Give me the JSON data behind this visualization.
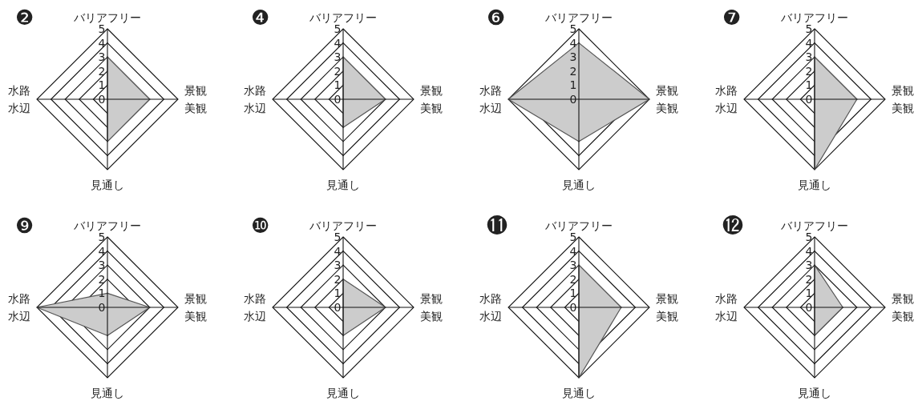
{
  "chart_data": [
    {
      "type": "radar",
      "title": "❷",
      "categories": [
        "バリアフリー",
        "景観美観",
        "見通し",
        "水路水辺"
      ],
      "ylim": [
        0,
        5
      ],
      "yticks": [
        0,
        1,
        2,
        3,
        4,
        5
      ],
      "grid": true,
      "series": [
        {
          "color": "#cccccc",
          "values": [
            3,
            3,
            3,
            0
          ]
        }
      ]
    },
    {
      "type": "radar",
      "title": "❹",
      "categories": [
        "バリアフリー",
        "景観美観",
        "見通し",
        "水路水辺"
      ],
      "ylim": [
        0,
        5
      ],
      "yticks": [
        0,
        1,
        2,
        3,
        4,
        5
      ],
      "grid": true,
      "series": [
        {
          "color": "#cccccc",
          "values": [
            3,
            3,
            2,
            0
          ]
        }
      ]
    },
    {
      "type": "radar",
      "title": "❻",
      "categories": [
        "バリアフリー",
        "景観美観",
        "見通し",
        "水路水辺"
      ],
      "ylim": [
        0,
        5
      ],
      "yticks": [
        0,
        1,
        2,
        3,
        4,
        5
      ],
      "grid": true,
      "series": [
        {
          "color": "#cccccc",
          "values": [
            4,
            5,
            3,
            5
          ]
        }
      ]
    },
    {
      "type": "radar",
      "title": "❼",
      "categories": [
        "バリアフリー",
        "景観美観",
        "見通し",
        "水路水辺"
      ],
      "ylim": [
        0,
        5
      ],
      "yticks": [
        0,
        1,
        2,
        3,
        4,
        5
      ],
      "grid": true,
      "series": [
        {
          "color": "#cccccc",
          "values": [
            3,
            3,
            5,
            0
          ]
        }
      ]
    },
    {
      "type": "radar",
      "title": "❾",
      "categories": [
        "バリアフリー",
        "景観美観",
        "見通し",
        "水路水辺"
      ],
      "ylim": [
        0,
        5
      ],
      "yticks": [
        0,
        1,
        2,
        3,
        4,
        5
      ],
      "grid": true,
      "series": [
        {
          "color": "#cccccc",
          "values": [
            1,
            3,
            2,
            5
          ]
        }
      ]
    },
    {
      "type": "radar",
      "title": "❿",
      "categories": [
        "バリアフリー",
        "景観美観",
        "見通し",
        "水路水辺"
      ],
      "ylim": [
        0,
        5
      ],
      "yticks": [
        0,
        1,
        2,
        3,
        4,
        5
      ],
      "grid": true,
      "series": [
        {
          "color": "#cccccc",
          "values": [
            2,
            3,
            2,
            0
          ]
        }
      ]
    },
    {
      "type": "radar",
      "title": "⓫",
      "categories": [
        "バリアフリー",
        "景観美観",
        "見通し",
        "水路水辺"
      ],
      "ylim": [
        0,
        5
      ],
      "yticks": [
        0,
        1,
        2,
        3,
        4,
        5
      ],
      "grid": true,
      "series": [
        {
          "color": "#cccccc",
          "values": [
            3,
            3,
            5,
            0
          ]
        }
      ]
    },
    {
      "type": "radar",
      "title": "⓬",
      "categories": [
        "バリアフリー",
        "景観美観",
        "見通し",
        "水路水辺"
      ],
      "ylim": [
        0,
        5
      ],
      "yticks": [
        0,
        1,
        2,
        3,
        4,
        5
      ],
      "grid": true,
      "series": [
        {
          "color": "#cccccc",
          "values": [
            3,
            2,
            2,
            0
          ]
        }
      ]
    }
  ]
}
